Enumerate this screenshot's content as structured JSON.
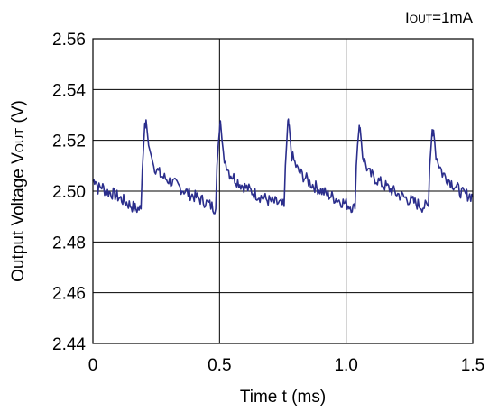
{
  "chart_data": {
    "type": "line",
    "annotation": {
      "main": "I",
      "sub": "OUT",
      "rest": "=1mA"
    },
    "xlabel": "Time t  (ms)",
    "ylabel": {
      "main": "Output Voltage V",
      "sub": "OUT",
      "rest": " (V)"
    },
    "xlim": [
      0,
      1.5
    ],
    "ylim": [
      2.44,
      2.56
    ],
    "x_ticks": [
      "0",
      "0.5",
      "1.0",
      "1.5"
    ],
    "x_tick_values": [
      0,
      0.5,
      1.0,
      1.5
    ],
    "y_ticks": [
      "2.44",
      "2.46",
      "2.48",
      "2.50",
      "2.52",
      "2.54",
      "2.56"
    ],
    "y_tick_values": [
      2.44,
      2.46,
      2.48,
      2.5,
      2.52,
      2.54,
      2.56
    ],
    "grid": true,
    "series": [
      {
        "color": "#2b2e8c",
        "x": [
          0.0,
          0.01,
          0.02,
          0.035,
          0.05,
          0.08,
          0.11,
          0.14,
          0.17,
          0.19,
          0.195,
          0.205,
          0.21,
          0.22,
          0.24,
          0.27,
          0.32,
          0.38,
          0.44,
          0.47,
          0.485,
          0.49,
          0.5,
          0.505,
          0.515,
          0.54,
          0.58,
          0.64,
          0.7,
          0.74,
          0.755,
          0.76,
          0.77,
          0.775,
          0.785,
          0.81,
          0.86,
          0.92,
          0.98,
          1.02,
          1.035,
          1.04,
          1.05,
          1.055,
          1.065,
          1.09,
          1.14,
          1.2,
          1.26,
          1.3,
          1.325,
          1.33,
          1.34,
          1.345,
          1.355,
          1.38,
          1.42,
          1.46,
          1.5
        ],
        "y": [
          2.504,
          2.505,
          2.501,
          2.502,
          2.5,
          2.499,
          2.497,
          2.495,
          2.493,
          2.493,
          2.508,
          2.526,
          2.528,
          2.518,
          2.51,
          2.506,
          2.503,
          2.499,
          2.496,
          2.494,
          2.493,
          2.51,
          2.526,
          2.526,
          2.514,
          2.507,
          2.503,
          2.499,
          2.496,
          2.495,
          2.494,
          2.51,
          2.527,
          2.526,
          2.514,
          2.508,
          2.503,
          2.499,
          2.496,
          2.494,
          2.493,
          2.51,
          2.526,
          2.525,
          2.514,
          2.507,
          2.503,
          2.499,
          2.496,
          2.494,
          2.494,
          2.51,
          2.524,
          2.524,
          2.514,
          2.507,
          2.503,
          2.499,
          2.498
        ]
      }
    ]
  }
}
